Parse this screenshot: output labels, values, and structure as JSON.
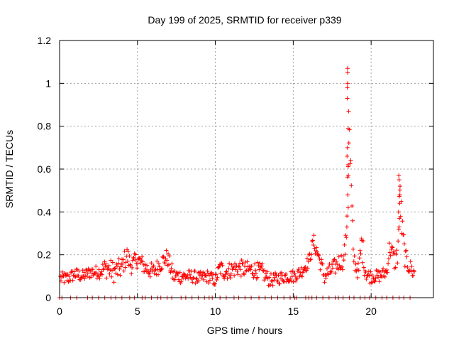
{
  "chart_data": {
    "type": "scatter",
    "title": "Day 199 of 2025, SRMTID for receiver p339",
    "xlabel": "GPS time / hours",
    "ylabel": "SRMTID / TECUs",
    "xlim": [
      0,
      24
    ],
    "ylim": [
      0,
      1.2
    ],
    "xticks": [
      0,
      5,
      10,
      15,
      20
    ],
    "yticks": [
      0,
      0.2,
      0.4,
      0.6,
      0.8,
      1,
      1.2
    ],
    "xtick_labels": [
      "0",
      "5",
      "10",
      "15",
      "20"
    ],
    "ytick_labels": [
      "0",
      "0.2",
      "0.4",
      "0.6",
      "0.8",
      "1",
      "1.2"
    ],
    "grid": true,
    "marker": "+",
    "color": "#ff0000",
    "series": [
      {
        "name": "SRMTID",
        "profile": {
          "x": [
            0.0,
            0.5,
            1.0,
            1.5,
            2.0,
            2.5,
            3.0,
            3.5,
            4.0,
            4.3,
            4.6,
            5.0,
            5.5,
            6.0,
            6.5,
            6.9,
            7.3,
            8.0,
            8.5,
            9.0,
            9.5,
            10.0,
            10.3,
            10.6,
            11.0,
            11.5,
            12.0,
            12.5,
            13.0,
            13.5,
            14.0,
            14.5,
            15.0,
            15.5,
            16.0,
            16.3,
            16.6,
            17.0,
            17.5,
            18.0,
            18.2,
            18.4,
            18.55,
            18.7,
            18.85,
            19.0,
            19.2,
            19.4,
            19.6,
            19.8,
            20.0,
            20.5,
            21.0,
            21.2,
            21.5,
            21.7,
            21.85,
            22.0,
            22.2,
            22.4,
            22.8
          ],
          "y": [
            0.09,
            0.09,
            0.11,
            0.1,
            0.12,
            0.12,
            0.14,
            0.12,
            0.14,
            0.2,
            0.15,
            0.18,
            0.14,
            0.12,
            0.16,
            0.19,
            0.1,
            0.1,
            0.1,
            0.09,
            0.1,
            0.08,
            0.14,
            0.12,
            0.13,
            0.14,
            0.13,
            0.13,
            0.12,
            0.08,
            0.09,
            0.1,
            0.1,
            0.12,
            0.17,
            0.26,
            0.2,
            0.1,
            0.13,
            0.17,
            0.17,
            0.26,
            0.8,
            0.55,
            0.2,
            0.15,
            0.12,
            0.26,
            0.14,
            0.1,
            0.1,
            0.1,
            0.12,
            0.24,
            0.17,
            0.2,
            0.48,
            0.3,
            0.18,
            0.15,
            0.11
          ],
          "spread": [
            0.03,
            0.03,
            0.03,
            0.03,
            0.03,
            0.03,
            0.05,
            0.05,
            0.05,
            0.05,
            0.04,
            0.04,
            0.04,
            0.04,
            0.04,
            0.04,
            0.04,
            0.03,
            0.03,
            0.03,
            0.03,
            0.03,
            0.04,
            0.04,
            0.04,
            0.04,
            0.04,
            0.04,
            0.04,
            0.03,
            0.03,
            0.03,
            0.03,
            0.03,
            0.03,
            0.04,
            0.04,
            0.04,
            0.04,
            0.04,
            0.04,
            0.05,
            0.22,
            0.15,
            0.05,
            0.04,
            0.04,
            0.08,
            0.05,
            0.04,
            0.03,
            0.03,
            0.03,
            0.05,
            0.05,
            0.05,
            0.1,
            0.08,
            0.05,
            0.04,
            0.04
          ]
        },
        "zero_points_x": [
          0.0,
          0.15,
          0.7,
          1.1,
          1.8,
          2.1,
          2.5,
          2.9,
          3.3,
          3.6,
          4.0,
          4.5,
          4.8,
          5.3,
          5.5,
          5.9,
          6.3,
          6.5,
          6.9,
          7.2,
          7.8,
          8.1,
          8.5,
          8.9,
          9.3,
          9.6,
          9.8,
          10.3,
          10.7,
          11.2,
          11.5,
          11.9,
          12.3,
          12.8,
          13.2,
          13.6,
          14.0,
          14.4,
          14.8,
          15.1,
          15.2,
          15.8,
          16.0,
          16.2,
          16.5,
          16.9,
          17.3,
          17.7,
          17.9,
          18.2,
          18.6,
          18.9,
          19.3,
          19.6,
          19.9,
          20.3,
          20.7,
          21.0,
          21.4,
          21.8,
          22.1,
          22.5
        ]
      }
    ],
    "peaks": [
      {
        "x": 18.5,
        "y": [
          1.07,
          1.05,
          1.0,
          0.98,
          0.93,
          0.87,
          0.79,
          0.7,
          0.66,
          0.62,
          0.57,
          0.48,
          0.42,
          0.33
        ]
      },
      {
        "x": 21.8,
        "y": [
          0.57,
          0.55,
          0.52,
          0.48,
          0.44,
          0.4,
          0.37,
          0.33
        ]
      }
    ]
  }
}
